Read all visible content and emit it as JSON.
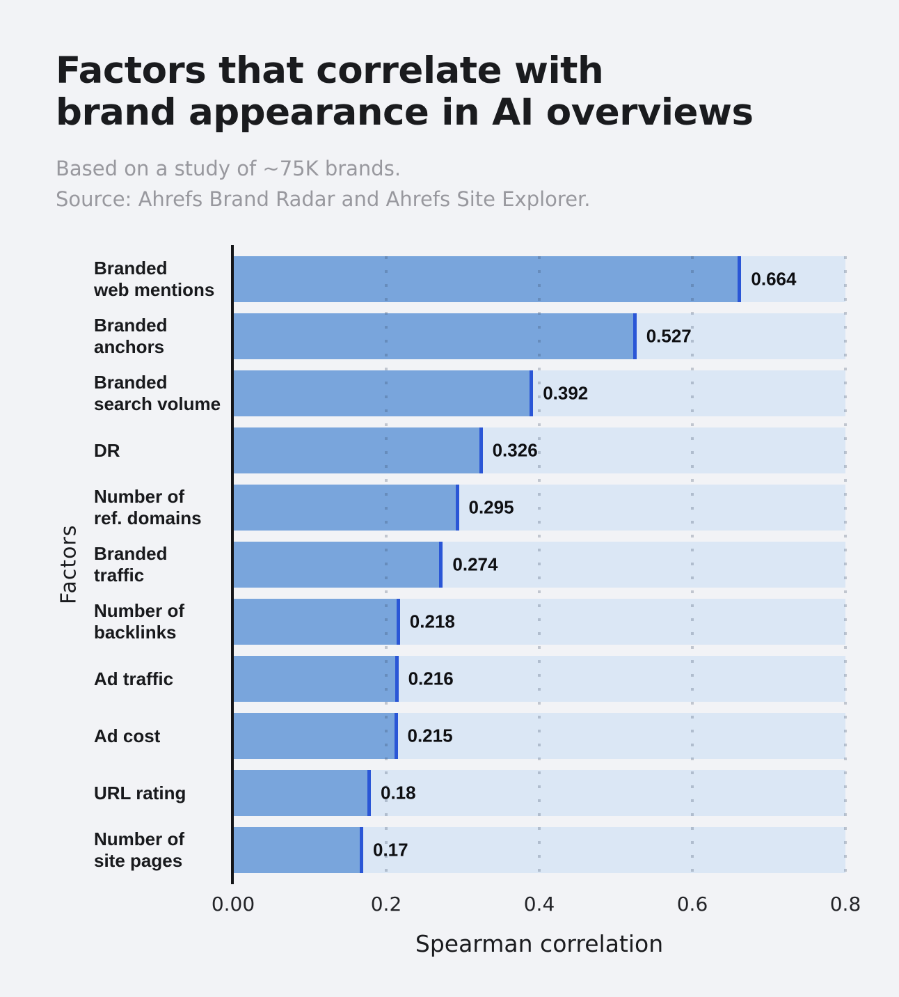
{
  "header": {
    "title_lines": [
      "Factors that correlate with",
      "brand appearance in AI overviews"
    ],
    "subtitle_lines": [
      "Based on a study of ~75K brands.",
      "Source: Ahrefs Brand Radar and Ahrefs Site Explorer."
    ]
  },
  "chart_data": {
    "type": "bar",
    "orientation": "horizontal",
    "title": "Factors that correlate with brand appearance in AI overviews",
    "subtitle": "Based on a study of ~75K brands. Source: Ahrefs Brand Radar and Ahrefs Site Explorer.",
    "categories": [
      "Branded web mentions",
      "Branded anchors",
      "Branded search volume",
      "DR",
      "Number of ref. domains",
      "Branded traffic",
      "Number of backlinks",
      "Ad traffic",
      "Ad cost",
      "URL rating",
      "Number of site pages"
    ],
    "category_lines": [
      [
        "Branded",
        "web mentions"
      ],
      [
        "Branded",
        "anchors"
      ],
      [
        "Branded",
        "search volume"
      ],
      [
        "DR"
      ],
      [
        "Number of",
        "ref. domains"
      ],
      [
        "Branded",
        "traffic"
      ],
      [
        "Number of",
        "backlinks"
      ],
      [
        "Ad traffic"
      ],
      [
        "Ad cost"
      ],
      [
        "URL rating"
      ],
      [
        "Number of",
        "site pages"
      ]
    ],
    "values": [
      0.664,
      0.527,
      0.392,
      0.326,
      0.295,
      0.274,
      0.218,
      0.216,
      0.215,
      0.18,
      0.17
    ],
    "value_labels": [
      "0.664",
      "0.527",
      "0.392",
      "0.326",
      "0.295",
      "0.274",
      "0.218",
      "0.216",
      "0.215",
      "0.18",
      "0.17"
    ],
    "xlabel": "Spearman correlation",
    "ylabel": "Factors",
    "xlim": [
      0,
      0.8
    ],
    "x_ticks": [
      "0.00",
      "0.2",
      "0.4",
      "0.6",
      "0.8"
    ],
    "x_tick_values": [
      0,
      0.2,
      0.4,
      0.6,
      0.8
    ],
    "grid": "dotted-vertical",
    "legend": "none",
    "colors": {
      "background": "#f2f3f6",
      "bar_fill": "#79a5dc",
      "bar_edge": "#2a56d6",
      "track": "#dbe7f5",
      "grid_dot": "rgba(48,64,90,0.25)",
      "title": "#1a1b1e",
      "subtitle": "#98989e",
      "tick": "#222327",
      "label": "#18191c",
      "value": "#0e0f12"
    }
  }
}
